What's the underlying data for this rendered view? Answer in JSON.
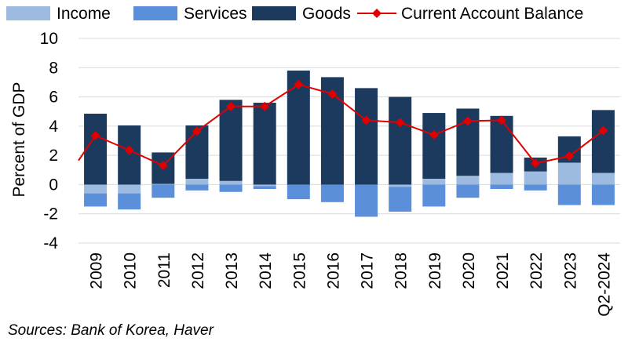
{
  "chart_data": {
    "type": "bar",
    "ylabel": "Percent of GDP",
    "ylim": [
      -4,
      10
    ],
    "yticks": [
      -4,
      -2,
      0,
      2,
      4,
      6,
      8,
      10
    ],
    "grid": true,
    "legend_position": "top",
    "categories": [
      "2009",
      "2010",
      "2011",
      "2012",
      "2013",
      "2014",
      "2015",
      "2016",
      "2017",
      "2018",
      "2019",
      "2020",
      "2021",
      "2022",
      "2023",
      "Q2-2024"
    ],
    "series": [
      {
        "name": "Income",
        "kind": "bar",
        "color": "#9dbbe0",
        "values": [
          -0.6,
          -0.6,
          0.05,
          0.4,
          0.25,
          -0.1,
          0.0,
          0.0,
          0.0,
          -0.15,
          0.4,
          0.6,
          0.8,
          0.9,
          1.5,
          0.8
        ]
      },
      {
        "name": "Services",
        "kind": "bar",
        "color": "#5b8fd9",
        "values": [
          -0.9,
          -1.1,
          -0.9,
          -0.4,
          -0.5,
          -0.2,
          -1.0,
          -1.2,
          -2.2,
          -1.7,
          -1.5,
          -0.9,
          -0.3,
          -0.4,
          -1.4,
          -1.4
        ]
      },
      {
        "name": "Goods",
        "kind": "bar",
        "color": "#1c3a5e",
        "values": [
          4.85,
          4.05,
          2.15,
          3.65,
          5.55,
          5.6,
          7.8,
          7.35,
          6.6,
          6.0,
          4.5,
          4.6,
          3.9,
          0.95,
          1.8,
          4.3
        ]
      },
      {
        "name": "Current Account Balance",
        "kind": "line",
        "color": "#e00000",
        "values": [
          3.35,
          2.35,
          1.3,
          3.65,
          5.35,
          5.35,
          6.85,
          6.2,
          4.4,
          4.25,
          3.4,
          4.35,
          4.4,
          1.45,
          1.95,
          3.7
        ]
      }
    ],
    "source": "Sources: Bank of Korea, Haver"
  }
}
